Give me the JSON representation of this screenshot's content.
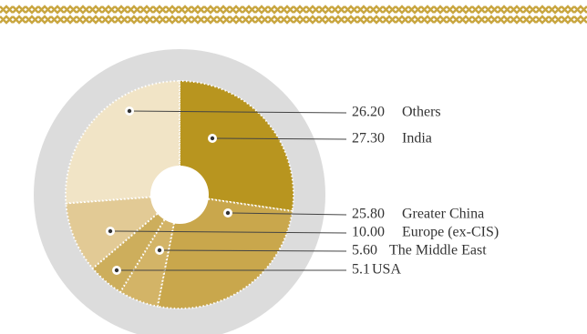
{
  "chart_data": {
    "type": "pie",
    "categories": [
      "Others",
      "India",
      "Greater China",
      "Europe (ex-CIS)",
      "The Middle East",
      "USA"
    ],
    "values": [
      26.2,
      27.3,
      25.8,
      10.0,
      5.6,
      5.1
    ],
    "value_labels": [
      "26.20",
      "27.30",
      "25.80",
      "10.00",
      "5.60",
      "5.1"
    ],
    "colors": [
      "#f1e4c6",
      "#b8951f",
      "#c9a74c",
      "#e2ca95",
      "#d3b467",
      "#cdae5c"
    ]
  }
}
